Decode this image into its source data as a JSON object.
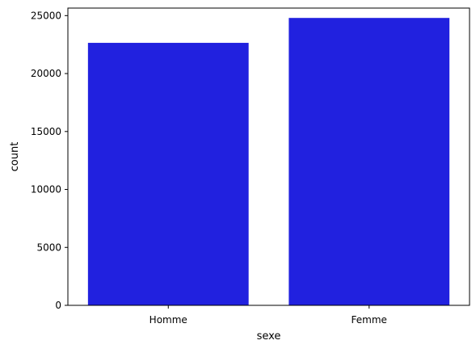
{
  "chart_data": {
    "type": "bar",
    "categories": [
      "Homme",
      "Femme"
    ],
    "values": [
      22650,
      24800
    ],
    "xlabel": "sexe",
    "ylabel": "count",
    "ylim": [
      0,
      25650
    ],
    "yticks": [
      0,
      5000,
      10000,
      15000,
      20000,
      25000
    ],
    "grid": false,
    "bar_color": "#2121df"
  }
}
